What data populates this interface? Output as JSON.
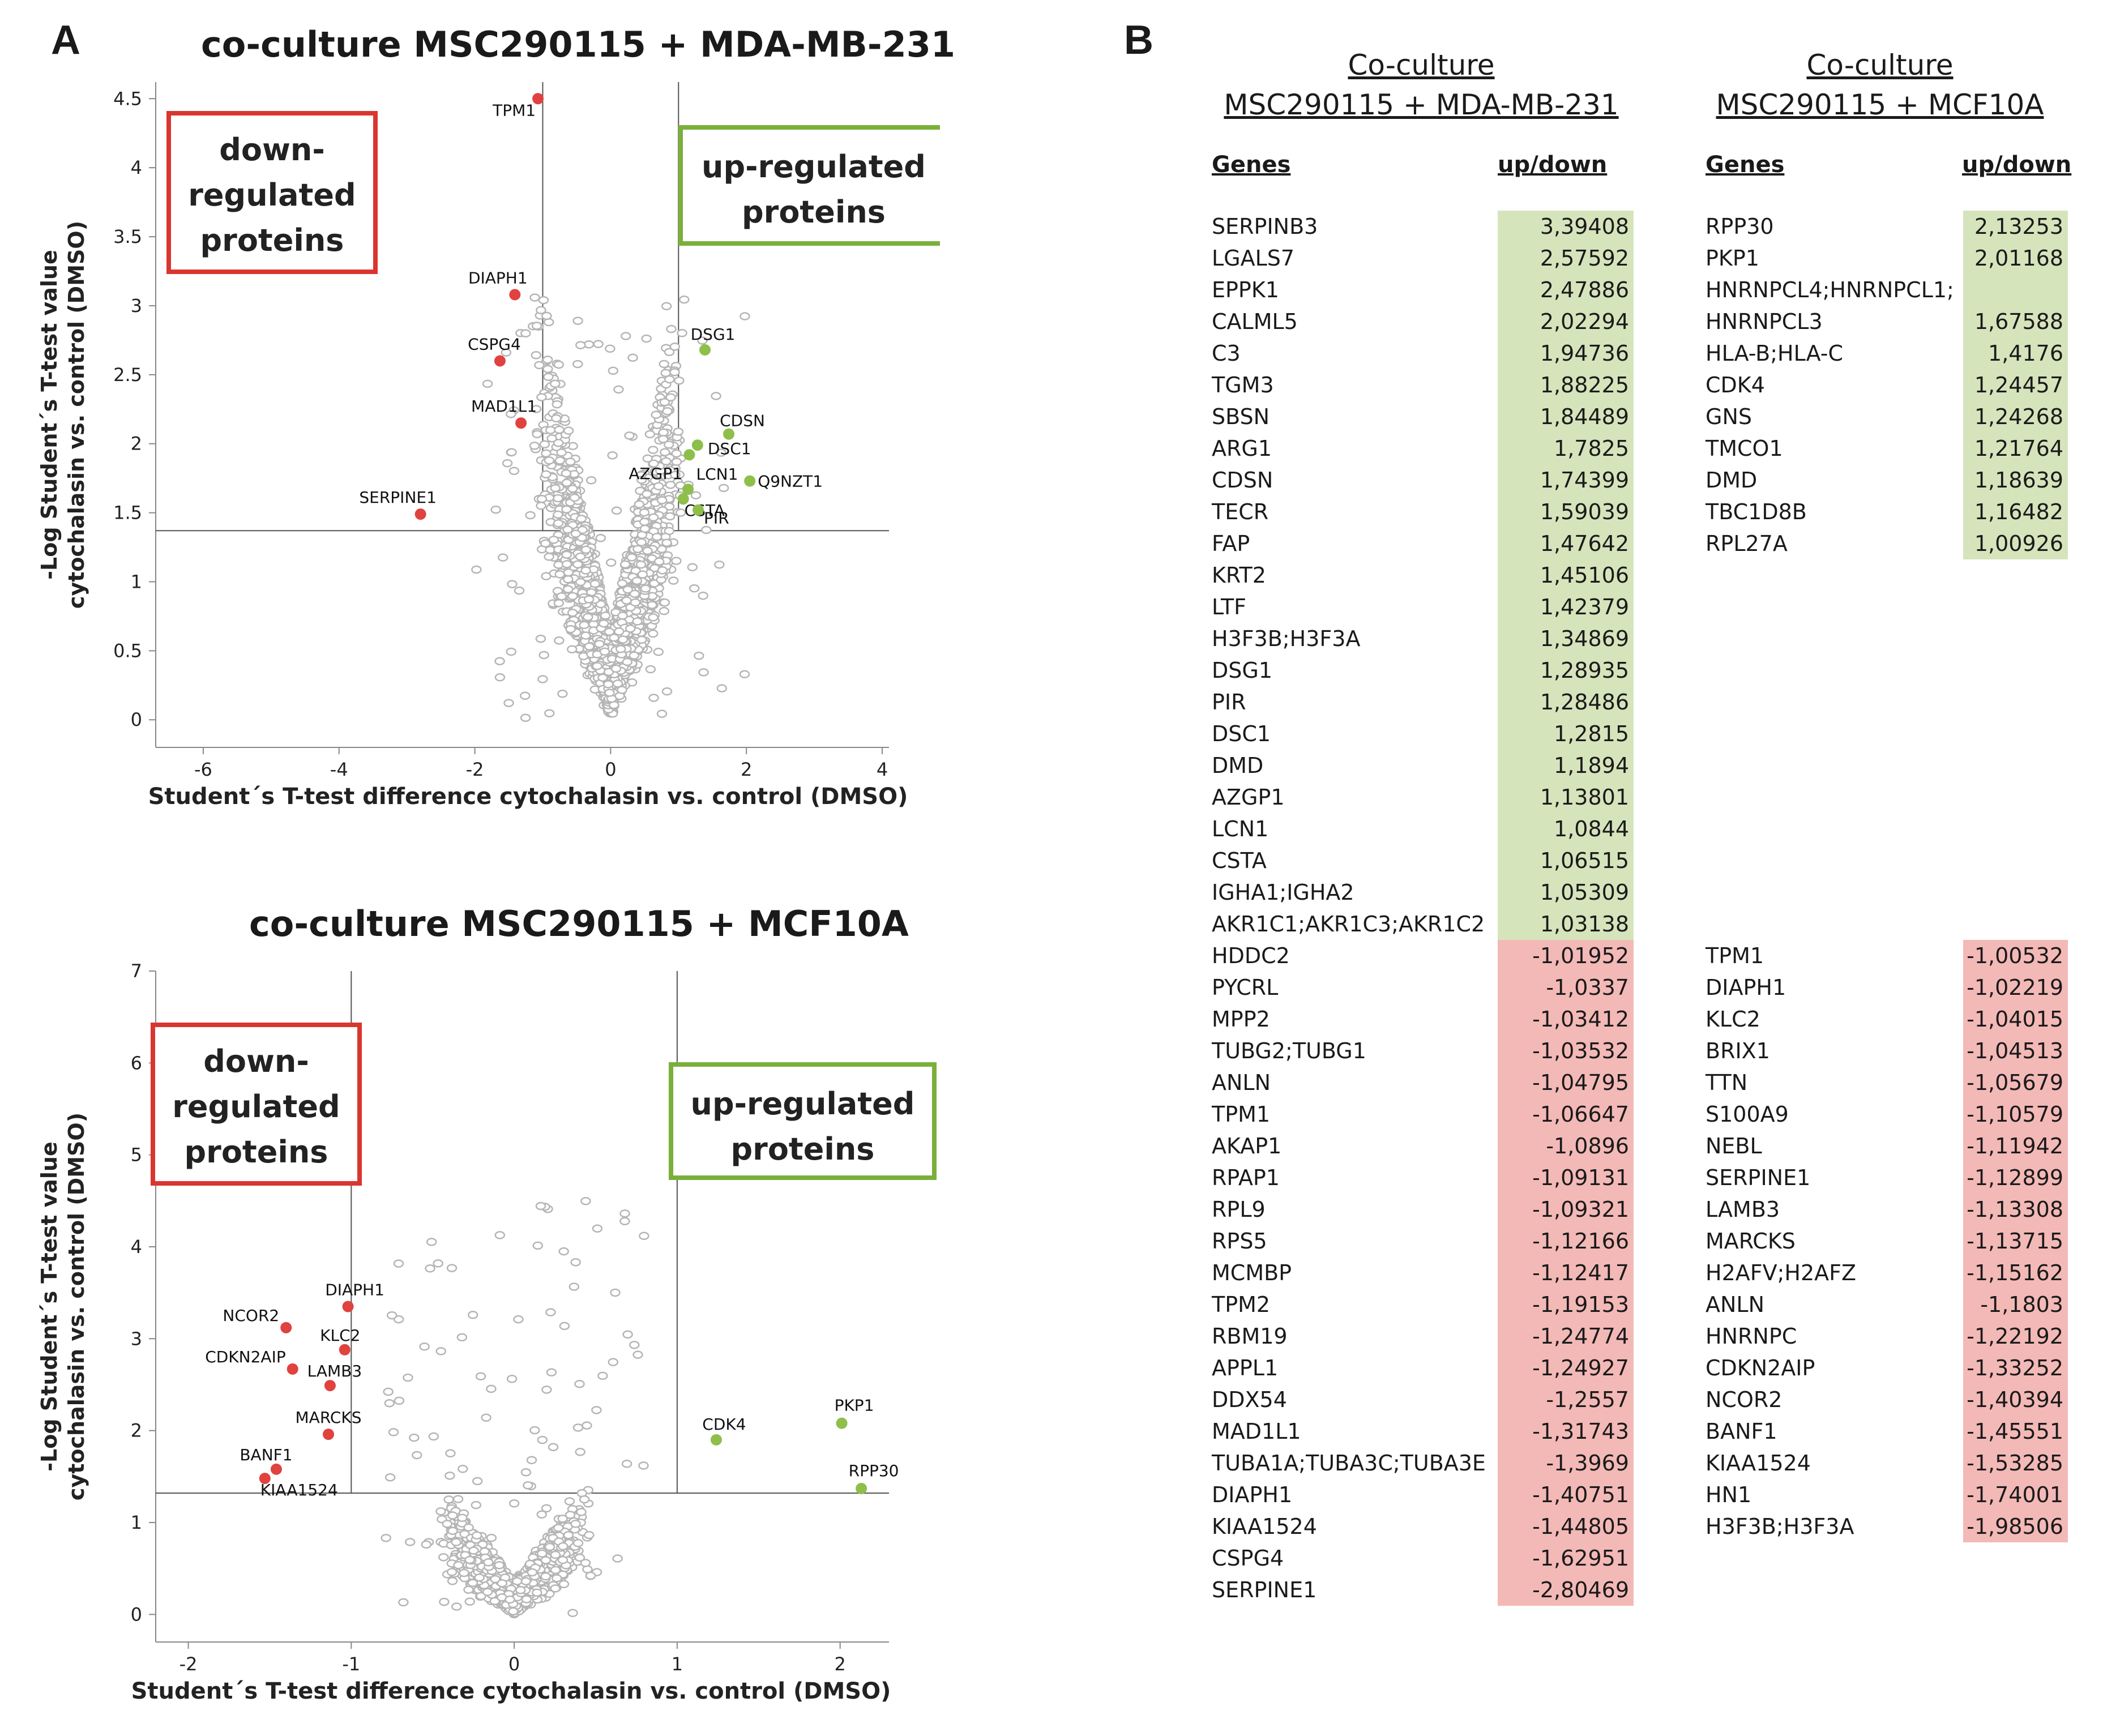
{
  "panel_a_label": "A",
  "panel_b_label": "B",
  "colors": {
    "up": "#8dbf4a",
    "down": "#e0423f",
    "grey": "#aaaaaa",
    "up_box": "#7aaf3a",
    "down_box": "#d9362f",
    "up_cell": "#d6e4bc",
    "down_cell": "#f3b9b7"
  },
  "chart_data": [
    {
      "type": "scatter",
      "title": "co-culture MSC290115 + MDA-MB-231",
      "xlabel": "Student´s T-test difference  cytochalasin vs. control  (DMSO)",
      "ylabel": "-Log Student´s T-test value cytochalasin vs. control (DMSO)",
      "ylabel_line1": "-Log Student´s T-test value",
      "ylabel_line2": "cytochalasin vs. control (DMSO)",
      "xlim": [
        -6.7,
        4.1
      ],
      "ylim": [
        -0.2,
        4.62
      ],
      "xticks": [
        -6,
        -4,
        -2,
        0,
        2,
        4
      ],
      "yticks": [
        0,
        0.5,
        1,
        1.5,
        2,
        2.5,
        3,
        3.5,
        4,
        4.5
      ],
      "xtick_labels": [
        "-6",
        "-4",
        "-2",
        "0",
        "2",
        "4"
      ],
      "ytick_labels": [
        "0",
        "0.5",
        "1",
        "1.5",
        "2",
        "2.5",
        "3",
        "3.5",
        "4",
        "4.5"
      ],
      "threshold_x": [
        -1,
        1
      ],
      "threshold_y": 1.37,
      "down_box": [
        "down-",
        "regulated",
        "proteins"
      ],
      "up_box": [
        "up-regulated",
        "proteins"
      ],
      "down_points": [
        {
          "label": "TPM1",
          "x": -1.07,
          "y": 4.5
        },
        {
          "label": "DIAPH1",
          "x": -1.41,
          "y": 3.08
        },
        {
          "label": "CSPG4",
          "x": -1.63,
          "y": 2.6
        },
        {
          "label": "MAD1L1",
          "x": -1.32,
          "y": 2.15
        },
        {
          "label": "SERPINE1",
          "x": -2.8,
          "y": 1.49
        }
      ],
      "up_points": [
        {
          "label": "DSG1",
          "x": 1.39,
          "y": 2.68
        },
        {
          "label": "CDSN",
          "x": 1.74,
          "y": 2.07
        },
        {
          "label": "DSC1",
          "x": 1.28,
          "y": 1.99
        },
        {
          "label": "LCN1",
          "x": 1.16,
          "y": 1.92
        },
        {
          "label": "Q9NZT1",
          "x": 2.05,
          "y": 1.73
        },
        {
          "label": "AZGP1",
          "x": 1.14,
          "y": 1.67
        },
        {
          "label": "CSTA",
          "x": 1.07,
          "y": 1.6
        },
        {
          "label": "PIR",
          "x": 1.29,
          "y": 1.52
        }
      ]
    },
    {
      "type": "scatter",
      "title": "co-culture MSC290115 + MCF10A",
      "xlabel": "Student´s T-test difference  cytochalasin vs. control  (DMSO)",
      "ylabel": "-Log Student´s T-test value cytochalasin vs. control (DMSO)",
      "ylabel_line1": "-Log Student´s T-test value",
      "ylabel_line2": "cytochalasin vs. control (DMSO)",
      "xlim": [
        -2.2,
        2.3
      ],
      "ylim": [
        -0.3,
        7.0
      ],
      "xticks": [
        -2,
        -1,
        0,
        1,
        2
      ],
      "yticks": [
        0,
        1,
        2,
        3,
        4,
        5,
        6,
        7
      ],
      "xtick_labels": [
        "-2",
        "-1",
        "0",
        "1",
        "2"
      ],
      "ytick_labels": [
        "0",
        "1",
        "2",
        "3",
        "4",
        "5",
        "6",
        "7"
      ],
      "threshold_x": [
        -1,
        1
      ],
      "threshold_y": 1.32,
      "down_box": [
        "down-",
        "regulated",
        "proteins"
      ],
      "up_box": [
        "up-regulated",
        "proteins"
      ],
      "down_points": [
        {
          "label": "DIAPH1",
          "x": -1.02,
          "y": 3.35
        },
        {
          "label": "NCOR2",
          "x": -1.4,
          "y": 3.12
        },
        {
          "label": "KLC2",
          "x": -1.04,
          "y": 2.88
        },
        {
          "label": "CDKN2AIP",
          "x": -1.36,
          "y": 2.67
        },
        {
          "label": "LAMB3",
          "x": -1.13,
          "y": 2.49
        },
        {
          "label": "MARCKS",
          "x": -1.14,
          "y": 1.96
        },
        {
          "label": "BANF1",
          "x": -1.46,
          "y": 1.58
        },
        {
          "label": "KIAA1524",
          "x": -1.53,
          "y": 1.48
        }
      ],
      "up_points": [
        {
          "label": "CDK4",
          "x": 1.24,
          "y": 1.9
        },
        {
          "label": "PKP1",
          "x": 2.01,
          "y": 2.08
        },
        {
          "label": "RPP30",
          "x": 2.13,
          "y": 1.37
        }
      ]
    }
  ],
  "table_left": {
    "title_line1": "Co-culture",
    "title_line2": "MSC290115 + MDA-MB-231",
    "col_genes": "Genes",
    "col_updown": "up/down",
    "rows": [
      {
        "gene": "SERPINB3",
        "value": "3,39408",
        "dir": "up"
      },
      {
        "gene": "LGALS7",
        "value": "2,57592",
        "dir": "up"
      },
      {
        "gene": "EPPK1",
        "value": "2,47886",
        "dir": "up"
      },
      {
        "gene": "CALML5",
        "value": "2,02294",
        "dir": "up"
      },
      {
        "gene": "C3",
        "value": "1,94736",
        "dir": "up"
      },
      {
        "gene": "TGM3",
        "value": "1,88225",
        "dir": "up"
      },
      {
        "gene": "SBSN",
        "value": "1,84489",
        "dir": "up"
      },
      {
        "gene": "ARG1",
        "value": "1,7825",
        "dir": "up"
      },
      {
        "gene": "CDSN",
        "value": "1,74399",
        "dir": "up"
      },
      {
        "gene": "TECR",
        "value": "1,59039",
        "dir": "up"
      },
      {
        "gene": "FAP",
        "value": "1,47642",
        "dir": "up"
      },
      {
        "gene": "KRT2",
        "value": "1,45106",
        "dir": "up"
      },
      {
        "gene": "LTF",
        "value": "1,42379",
        "dir": "up"
      },
      {
        "gene": "H3F3B;H3F3A",
        "value": "1,34869",
        "dir": "up"
      },
      {
        "gene": "DSG1",
        "value": "1,28935",
        "dir": "up"
      },
      {
        "gene": "PIR",
        "value": "1,28486",
        "dir": "up"
      },
      {
        "gene": "DSC1",
        "value": "1,2815",
        "dir": "up"
      },
      {
        "gene": "DMD",
        "value": "1,1894",
        "dir": "up"
      },
      {
        "gene": "AZGP1",
        "value": "1,13801",
        "dir": "up"
      },
      {
        "gene": "LCN1",
        "value": "1,0844",
        "dir": "up"
      },
      {
        "gene": "CSTA",
        "value": "1,06515",
        "dir": "up"
      },
      {
        "gene": "IGHA1;IGHA2",
        "value": "1,05309",
        "dir": "up"
      },
      {
        "gene": "AKR1C1;AKR1C3;AKR1C2",
        "value": "1,03138",
        "dir": "up"
      },
      {
        "gene": "HDDC2",
        "value": "-1,01952",
        "dir": "down"
      },
      {
        "gene": "PYCRL",
        "value": "-1,0337",
        "dir": "down"
      },
      {
        "gene": "MPP2",
        "value": "-1,03412",
        "dir": "down"
      },
      {
        "gene": "TUBG2;TUBG1",
        "value": "-1,03532",
        "dir": "down"
      },
      {
        "gene": "ANLN",
        "value": "-1,04795",
        "dir": "down"
      },
      {
        "gene": "TPM1",
        "value": "-1,06647",
        "dir": "down"
      },
      {
        "gene": "AKAP1",
        "value": "-1,0896",
        "dir": "down"
      },
      {
        "gene": "RPAP1",
        "value": "-1,09131",
        "dir": "down"
      },
      {
        "gene": "RPL9",
        "value": "-1,09321",
        "dir": "down"
      },
      {
        "gene": "RPS5",
        "value": "-1,12166",
        "dir": "down"
      },
      {
        "gene": "MCMBP",
        "value": "-1,12417",
        "dir": "down"
      },
      {
        "gene": "TPM2",
        "value": "-1,19153",
        "dir": "down"
      },
      {
        "gene": "RBM19",
        "value": "-1,24774",
        "dir": "down"
      },
      {
        "gene": "APPL1",
        "value": "-1,24927",
        "dir": "down"
      },
      {
        "gene": "DDX54",
        "value": "-1,2557",
        "dir": "down"
      },
      {
        "gene": "MAD1L1",
        "value": "-1,31743",
        "dir": "down"
      },
      {
        "gene": "TUBA1A;TUBA3C;TUBA3E",
        "value": "-1,3969",
        "dir": "down"
      },
      {
        "gene": "DIAPH1",
        "value": "-1,40751",
        "dir": "down"
      },
      {
        "gene": "KIAA1524",
        "value": "-1,44805",
        "dir": "down"
      },
      {
        "gene": "CSPG4",
        "value": "-1,62951",
        "dir": "down"
      },
      {
        "gene": "SERPINE1",
        "value": "-2,80469",
        "dir": "down"
      }
    ]
  },
  "table_right": {
    "title_line1": "Co-culture",
    "title_line2": "MSC290115 + MCF10A",
    "col_genes": "Genes",
    "col_updown": "up/down",
    "up_rows": [
      {
        "gene": "RPP30",
        "value": "2,13253",
        "dir": "up"
      },
      {
        "gene": "PKP1",
        "value": "2,01168",
        "dir": "up"
      },
      {
        "gene": "HNRNPCL4;HNRNPCL1;",
        "value": "",
        "dir": "up"
      },
      {
        "gene": "HNRNPCL3",
        "value": "1,67588",
        "dir": "up"
      },
      {
        "gene": "HLA-B;HLA-C",
        "value": "1,4176",
        "dir": "up"
      },
      {
        "gene": "CDK4",
        "value": "1,24457",
        "dir": "up"
      },
      {
        "gene": "GNS",
        "value": "1,24268",
        "dir": "up"
      },
      {
        "gene": "TMCO1",
        "value": "1,21764",
        "dir": "up"
      },
      {
        "gene": "DMD",
        "value": "1,18639",
        "dir": "up"
      },
      {
        "gene": "TBC1D8B",
        "value": "1,16482",
        "dir": "up"
      },
      {
        "gene": "RPL27A",
        "value": "1,00926",
        "dir": "up"
      }
    ],
    "down_rows": [
      {
        "gene": "TPM1",
        "value": "-1,00532",
        "dir": "down"
      },
      {
        "gene": "DIAPH1",
        "value": "-1,02219",
        "dir": "down"
      },
      {
        "gene": "KLC2",
        "value": "-1,04015",
        "dir": "down"
      },
      {
        "gene": "BRIX1",
        "value": "-1,04513",
        "dir": "down"
      },
      {
        "gene": "TTN",
        "value": "-1,05679",
        "dir": "down"
      },
      {
        "gene": "S100A9",
        "value": "-1,10579",
        "dir": "down"
      },
      {
        "gene": "NEBL",
        "value": "-1,11942",
        "dir": "down"
      },
      {
        "gene": "SERPINE1",
        "value": "-1,12899",
        "dir": "down"
      },
      {
        "gene": "LAMB3",
        "value": "-1,13308",
        "dir": "down"
      },
      {
        "gene": "MARCKS",
        "value": "-1,13715",
        "dir": "down"
      },
      {
        "gene": "H2AFV;H2AFZ",
        "value": "-1,15162",
        "dir": "down"
      },
      {
        "gene": "ANLN",
        "value": "-1,1803",
        "dir": "down"
      },
      {
        "gene": "HNRNPC",
        "value": "-1,22192",
        "dir": "down"
      },
      {
        "gene": "CDKN2AIP",
        "value": "-1,33252",
        "dir": "down"
      },
      {
        "gene": "NCOR2",
        "value": "-1,40394",
        "dir": "down"
      },
      {
        "gene": "BANF1",
        "value": "-1,45551",
        "dir": "down"
      },
      {
        "gene": "KIAA1524",
        "value": "-1,53285",
        "dir": "down"
      },
      {
        "gene": "HN1",
        "value": "-1,74001",
        "dir": "down"
      },
      {
        "gene": "H3F3B;H3F3A",
        "value": "-1,98506",
        "dir": "down"
      }
    ]
  }
}
